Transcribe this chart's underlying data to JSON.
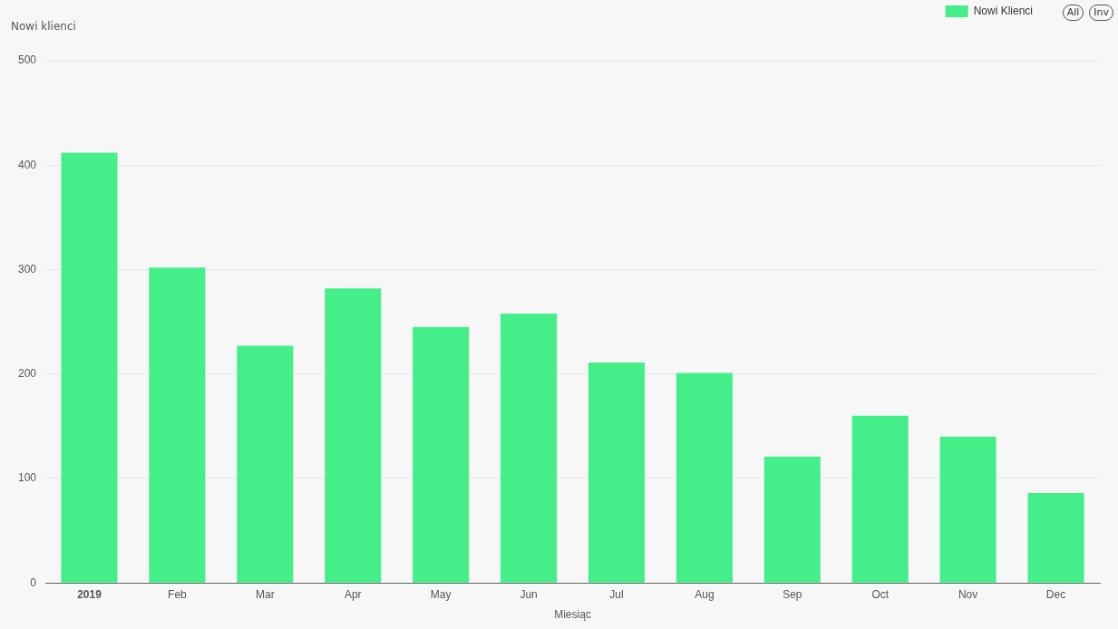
{
  "chart_data": {
    "type": "bar",
    "xlabel": "Miesiąc",
    "ylabel": "Nowi klienci",
    "categories": [
      "2019",
      "Feb",
      "Mar",
      "Apr",
      "May",
      "Jun",
      "Jul",
      "Aug",
      "Sep",
      "Oct",
      "Nov",
      "Dec"
    ],
    "series": [
      {
        "name": "Nowi Klienci",
        "color": "#44ee88",
        "values": [
          412,
          302,
          227,
          282,
          245,
          258,
          211,
          201,
          121,
          160,
          140,
          86
        ]
      }
    ],
    "ylim": [
      0,
      500
    ],
    "yticks": [
      0,
      100,
      200,
      300,
      400,
      500
    ],
    "grid": "y",
    "legend": "top right",
    "annotations": [
      "All",
      "Inv"
    ]
  }
}
